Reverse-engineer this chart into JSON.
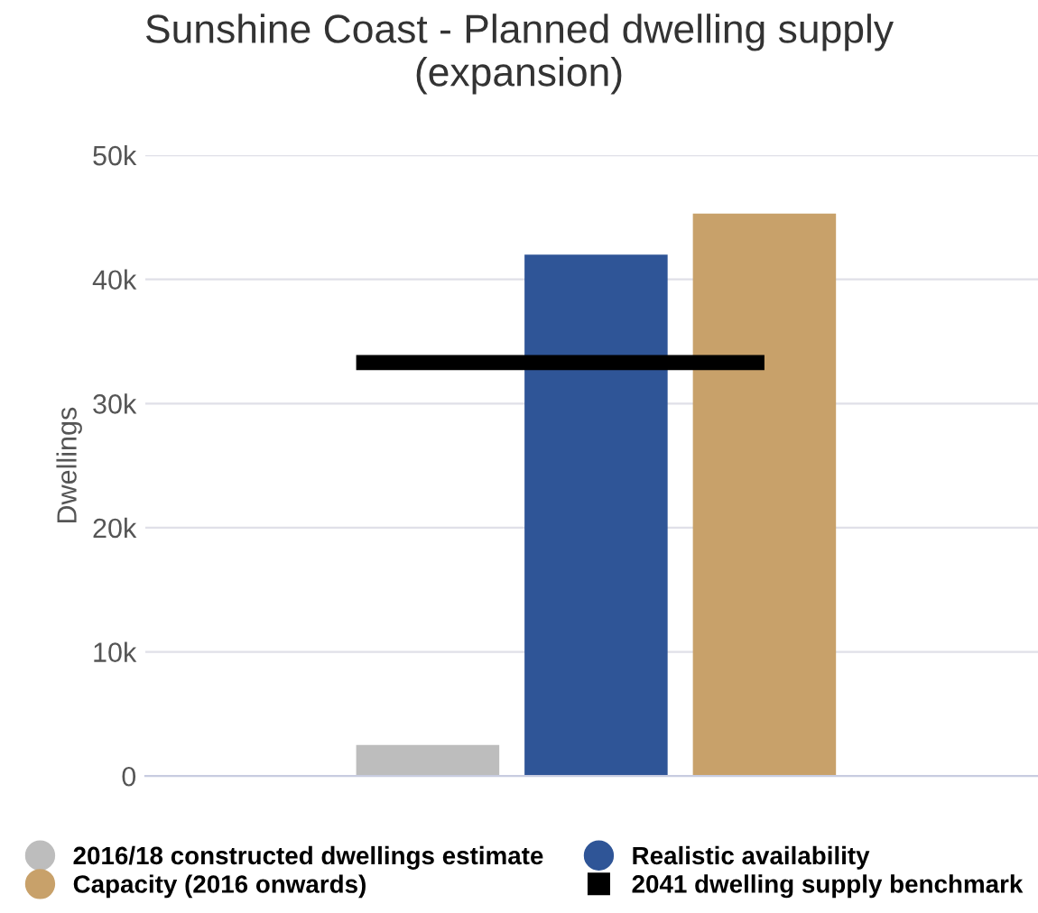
{
  "chart_data": {
    "type": "bar",
    "title": "Sunshine Coast - Planned dwelling supply\n(expansion)",
    "ylabel": "Dwellings",
    "categories": [
      null
    ],
    "series": [
      {
        "name": "2016/18 constructed dwellings estimate",
        "color": "#bdbdbd",
        "values": [
          2500
        ]
      },
      {
        "name": "Realistic availability",
        "color": "#2f5597",
        "values": [
          42000
        ]
      },
      {
        "name": "Capacity (2016 onwards)",
        "color": "#c8a16a",
        "values": [
          45300
        ]
      }
    ],
    "ref_lines": [
      {
        "axis": "y",
        "value": 33300,
        "label": "2041 dwelling supply benchmark",
        "color": "#000000"
      }
    ],
    "ylim": [
      0,
      50000
    ],
    "yticks": [
      {
        "value": 0,
        "label": "0"
      },
      {
        "value": 10000,
        "label": "10k"
      },
      {
        "value": 20000,
        "label": "20k"
      },
      {
        "value": 30000,
        "label": "30k"
      },
      {
        "value": 40000,
        "label": "40k"
      },
      {
        "value": 50000,
        "label": "50k"
      }
    ],
    "grid": "y",
    "legend": "bottom"
  }
}
